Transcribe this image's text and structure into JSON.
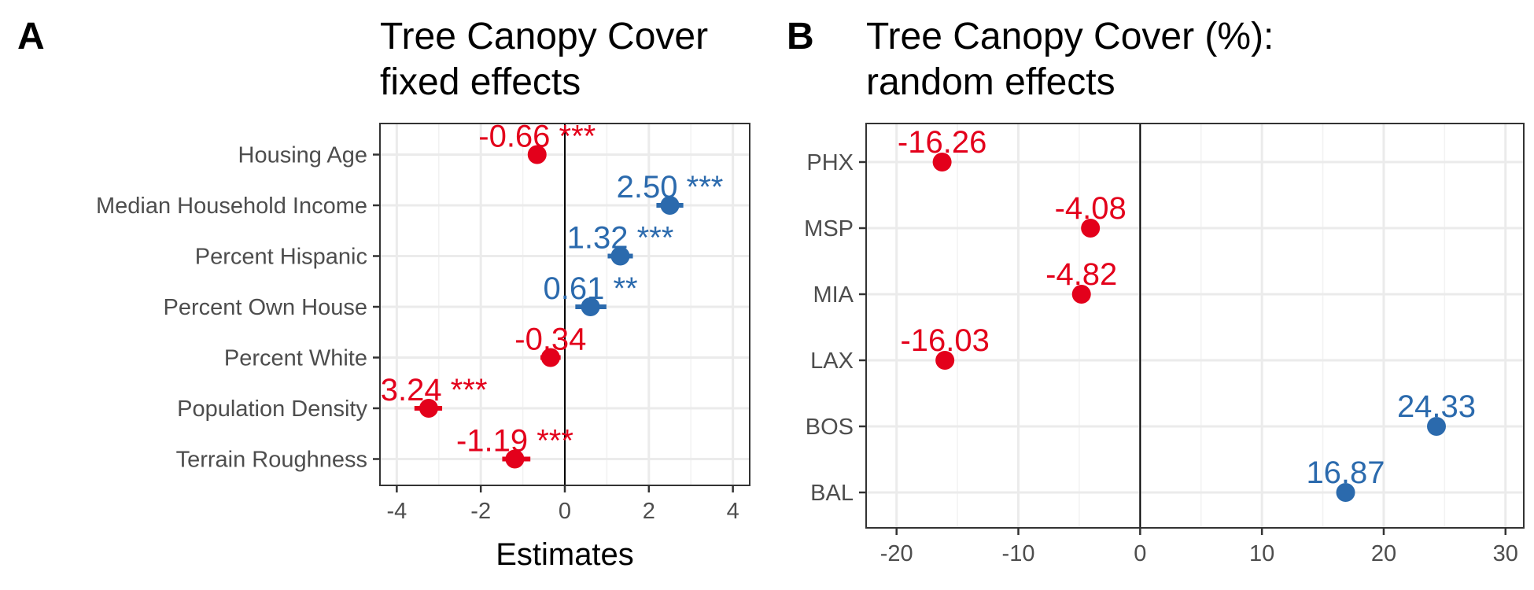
{
  "colors": {
    "negative": "#e3001b",
    "positive": "#2b6aad"
  },
  "chart_data": [
    {
      "panel": "A",
      "type": "scatter",
      "title_lines": [
        "Tree Canopy Cover",
        "fixed effects"
      ],
      "xlabel": "Estimates",
      "ylabel": "",
      "xlim": [
        -4.4,
        4.4
      ],
      "xticks": [
        -4,
        -2,
        0,
        2,
        4
      ],
      "xtick_labels": [
        "-4",
        "-2",
        "0",
        "2",
        "4"
      ],
      "grid": true,
      "categories": [
        "Housing Age",
        "Median Household Income",
        "Percent Hispanic",
        "Percent Own House",
        "Percent White",
        "Population Density",
        "Terrain Roughness"
      ],
      "values": [
        -0.66,
        2.5,
        1.32,
        0.61,
        -0.34,
        -3.24,
        -1.19
      ],
      "ci_low": [
        -0.82,
        2.18,
        1.02,
        0.25,
        -0.58,
        -3.58,
        -1.49
      ],
      "ci_high": [
        -0.44,
        2.82,
        1.62,
        0.99,
        -0.1,
        -2.92,
        -0.82
      ],
      "data_labels": [
        "-0.66 ***",
        "2.50 ***",
        "1.32 ***",
        "0.61 **",
        "-0.34",
        "-3.24 ***",
        "-1.19 ***"
      ]
    },
    {
      "panel": "B",
      "type": "scatter",
      "title_lines": [
        "Tree Canopy Cover (%):",
        "random effects"
      ],
      "xlabel": "",
      "ylabel": "",
      "xlim": [
        -22.5,
        31.5
      ],
      "xticks": [
        -20,
        -10,
        0,
        10,
        20,
        30
      ],
      "xtick_labels": [
        "-20",
        "-10",
        "0",
        "10",
        "20",
        "30"
      ],
      "grid": true,
      "categories": [
        "PHX",
        "MSP",
        "MIA",
        "LAX",
        "BOS",
        "BAL"
      ],
      "values": [
        -16.26,
        -4.08,
        -4.82,
        -16.03,
        24.33,
        16.87
      ],
      "data_labels": [
        "-16.26",
        "-4.08",
        "-4.82",
        "-16.03",
        "24.33",
        "16.87"
      ]
    }
  ]
}
